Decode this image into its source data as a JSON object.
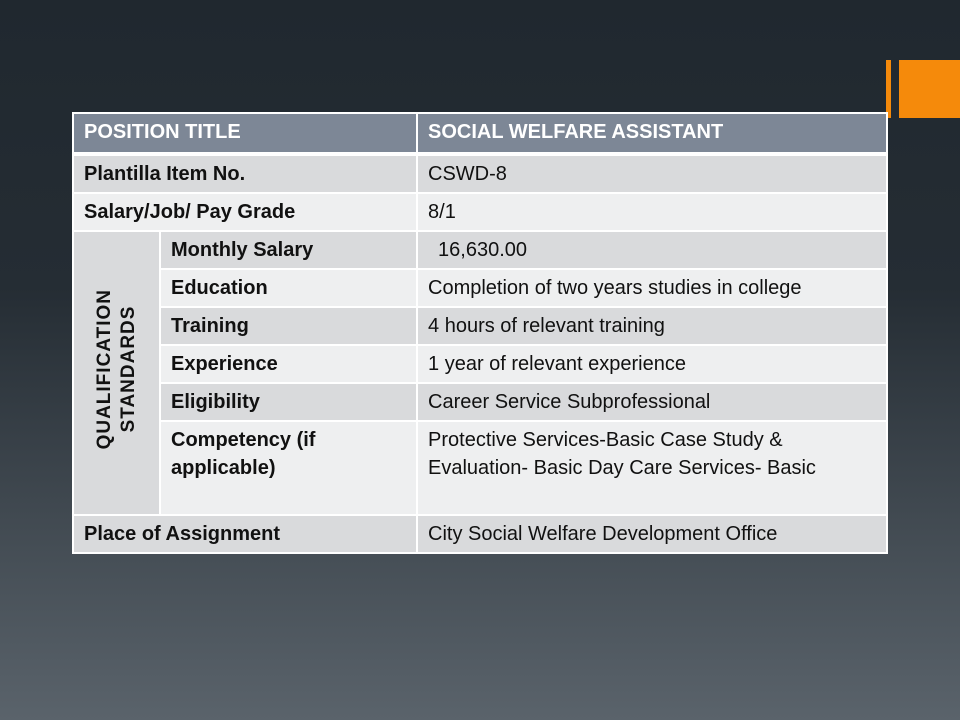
{
  "accent_color": "#f58a0b",
  "header": {
    "label": "POSITION TITLE",
    "value": "SOCIAL WELFARE ASSISTANT"
  },
  "rows_top": [
    {
      "label": "Plantilla Item No.",
      "value": "CSWD-8"
    },
    {
      "label": "Salary/Job/ Pay Grade",
      "value": "8/1"
    }
  ],
  "qualification": {
    "group_label_1": "QUALIFICATION",
    "group_label_2": "STANDARDS",
    "rows": [
      {
        "label": "Monthly Salary",
        "value": "16,630.00"
      },
      {
        "label": "Education",
        "value": "Completion of two years studies in college"
      },
      {
        "label": "Training",
        "value": "4 hours of relevant training"
      },
      {
        "label": "Experience",
        "value": "1 year of relevant experience"
      },
      {
        "label": "Eligibility",
        "value": "Career Service Subprofessional"
      },
      {
        "label": "Competency (if applicable)",
        "value": "Protective Services-Basic Case Study & Evaluation- Basic Day Care Services- Basic"
      }
    ]
  },
  "rows_bottom": [
    {
      "label": "Place of Assignment",
      "value": "City Social Welfare Development Office"
    }
  ]
}
